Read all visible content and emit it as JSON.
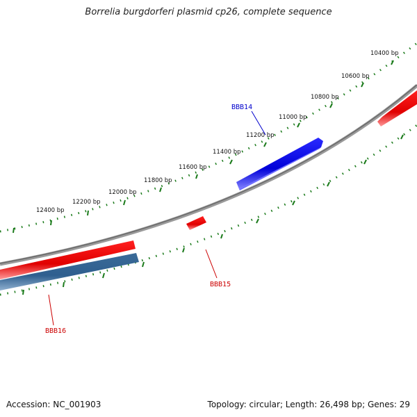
{
  "title": "Borrelia burgdorferi plasmid cp26, complete sequence",
  "footer": {
    "accession": "Accession: NC_001903",
    "summary": "Topology: circular; Length: 26,498 bp; Genes: 29"
  },
  "scale_ticks": [
    {
      "label": "10400 bp"
    },
    {
      "label": "10600 bp"
    },
    {
      "label": "10800 bp"
    },
    {
      "label": "11000 bp"
    },
    {
      "label": "11200 bp"
    },
    {
      "label": "11400 bp"
    },
    {
      "label": "11600 bp"
    },
    {
      "label": "11800 bp"
    },
    {
      "label": "12000 bp"
    },
    {
      "label": "12200 bp"
    },
    {
      "label": "12400 bp"
    }
  ],
  "genes": [
    {
      "name": "BBB14",
      "strand": "forward",
      "color": "#0000ee"
    },
    {
      "name": "BBB15",
      "strand": "reverse",
      "color": "#ee0000"
    },
    {
      "name": "BBB16",
      "strand": "reverse",
      "color": "#ee0000"
    }
  ],
  "colors": {
    "backbone": "#888888",
    "forward_gene": "#0000ee",
    "reverse_gene": "#ee1111",
    "other_gene": "#3f6f9f",
    "ticks": "#1a7a1a"
  }
}
